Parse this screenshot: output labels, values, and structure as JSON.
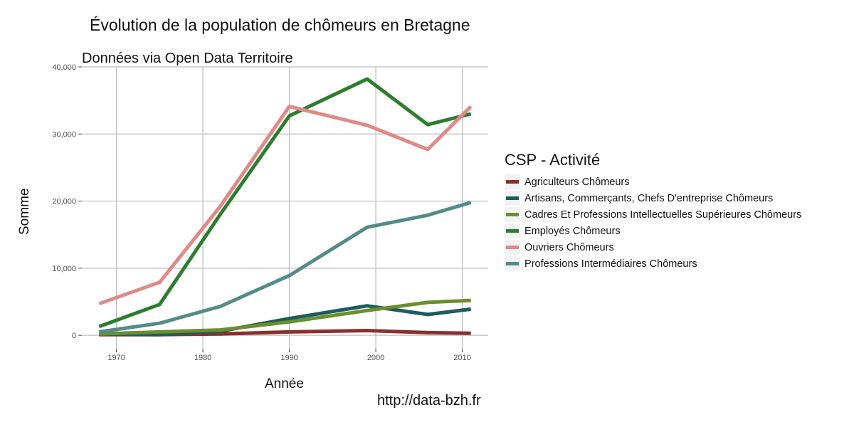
{
  "title": "Évolution de la population de chômeurs en Bretagne",
  "subtitle": "Données via Open Data Territoire",
  "caption": "http://data-bzh.fr",
  "chart_data": {
    "type": "line",
    "xlabel": "Année",
    "ylabel": "Somme",
    "xlim": [
      1966,
      2013
    ],
    "ylim": [
      -2000,
      40000
    ],
    "x_ticks": [
      1970,
      1980,
      1990,
      2000,
      2010
    ],
    "x_tick_labels": [
      "1970",
      "1980",
      "1990",
      "2000",
      "2010"
    ],
    "y_ticks": [
      0,
      10000,
      20000,
      30000,
      40000
    ],
    "y_tick_labels": [
      "0",
      "10,000",
      "20,000",
      "30,000",
      "40,000"
    ],
    "grid": true,
    "legend_title": "CSP - Activité",
    "legend_position": "right",
    "x": [
      1968,
      1975,
      1982,
      1990,
      1999,
      2006,
      2011
    ],
    "series": [
      {
        "name": "Agriculteurs Chômeurs",
        "color": "#8b2e2e",
        "values": [
          100,
          100,
          200,
          500,
          700,
          400,
          300
        ]
      },
      {
        "name": "Artisans, Commerçants, Chefs D'entreprise Chômeurs",
        "color": "#1d5c5a",
        "values": [
          200,
          100,
          600,
          2500,
          4400,
          3100,
          3900
        ]
      },
      {
        "name": "Cadres Et Professions Intellectuelles Supérieures Chômeurs",
        "color": "#6b8e2e",
        "values": [
          200,
          500,
          800,
          2000,
          3700,
          4900,
          5200
        ]
      },
      {
        "name": "Employés Chômeurs",
        "color": "#2e7d2e",
        "values": [
          1300,
          4600,
          18000,
          32700,
          38200,
          31400,
          33000
        ]
      },
      {
        "name": "Ouvriers Chômeurs",
        "color": "#e08a88",
        "values": [
          4700,
          7900,
          19200,
          34100,
          31300,
          27700,
          34100
        ]
      },
      {
        "name": "Professions Intermédiaires Chômeurs",
        "color": "#548b8a",
        "values": [
          500,
          1800,
          4300,
          8900,
          16100,
          17900,
          19800
        ]
      }
    ]
  }
}
